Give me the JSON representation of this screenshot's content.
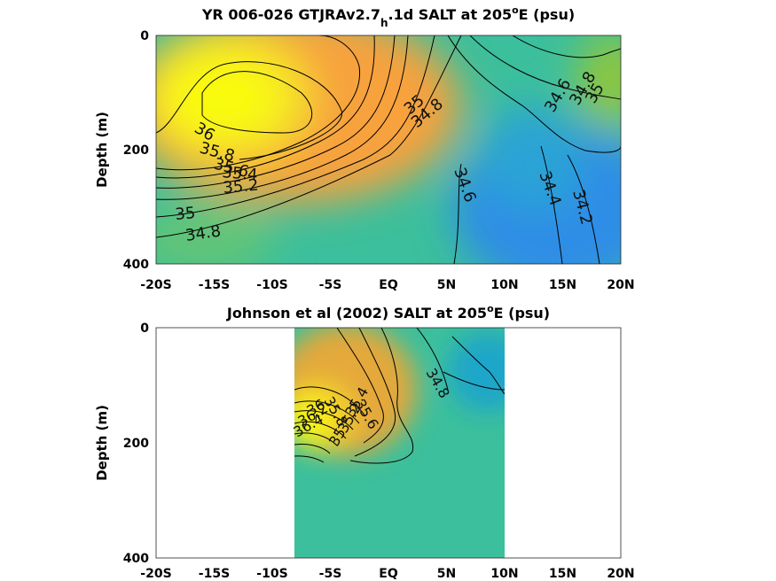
{
  "chart_data": [
    {
      "type": "heatmap",
      "title_main": "YR 006-026 GTJRAv2.7",
      "title_sub": "h",
      "title_tail": ".1d SALT at 205",
      "title_deg": "o",
      "title_end": "E (psu)",
      "xlabel": "",
      "ylabel": "Depth (m)",
      "x_ticks": [
        "-20S",
        "-15S",
        "-10S",
        "-5S",
        "EQ",
        "5N",
        "10N",
        "15N",
        "20N"
      ],
      "y_ticks": [
        "0",
        "200",
        "400"
      ],
      "xlim": [
        -20,
        20
      ],
      "ylim": [
        0,
        400
      ],
      "contour_labels": [
        "36",
        "35.8",
        "35.6",
        "35.4",
        "35.2",
        "35",
        "34.8",
        "35",
        "34.8",
        "34.6",
        "34.4",
        "34.2",
        "34.6",
        "34.8",
        "35"
      ]
    },
    {
      "type": "heatmap",
      "title_main": "Johnson et al (2002) SALT at 205",
      "title_deg": "o",
      "title_end": "E (psu)",
      "xlabel": "",
      "ylabel": "Depth (m)",
      "x_ticks": [
        "-20S",
        "-15S",
        "-10S",
        "-5S",
        "EQ",
        "5N",
        "10N",
        "15N",
        "20N"
      ],
      "y_ticks": [
        "0",
        "200",
        "400"
      ],
      "xlim": [
        -20,
        20
      ],
      "ylim": [
        0,
        400
      ],
      "data_xrange": [
        -8,
        10
      ],
      "contour_labels": [
        "34.8",
        "35",
        "35.2",
        "35.4",
        "35.6",
        "35.8",
        "36",
        "36.2",
        "36.4"
      ]
    }
  ],
  "colors": {
    "high_salinity": "#f9fb0e",
    "mid_high": "#fbb535",
    "mid": "#3cbf9c",
    "low_salinity": "#2f8de6"
  }
}
